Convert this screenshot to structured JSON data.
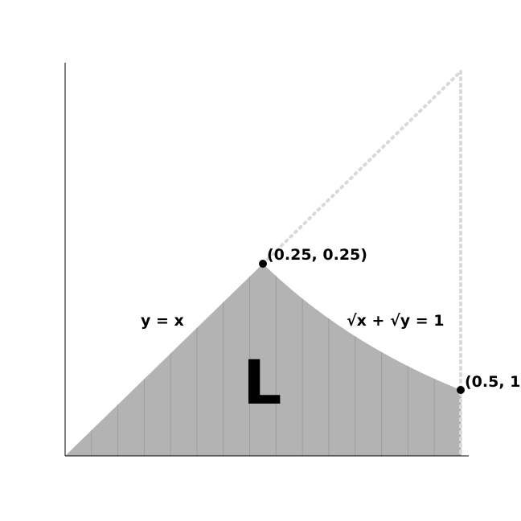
{
  "diagram": {
    "x_range": [
      0,
      0.5
    ],
    "y_range": [
      0,
      0.5
    ],
    "region_label": "L",
    "region_color": "#b3b3b3",
    "slice_line_color": "#9e9e9e",
    "guide_color": "#d9d9d9",
    "slice_count": 15,
    "curves": [
      {
        "equation": "y = x",
        "label": "y = x"
      },
      {
        "equation": "sqrt(x) + sqrt(y) = 1",
        "label": "√x + √y = 1"
      }
    ],
    "points": [
      {
        "x": 0.25,
        "y": 0.25,
        "label": "(0.25, 0.25)"
      },
      {
        "x": 0.5,
        "y": 0.0858,
        "label": "(0.5, 1"
      }
    ]
  }
}
